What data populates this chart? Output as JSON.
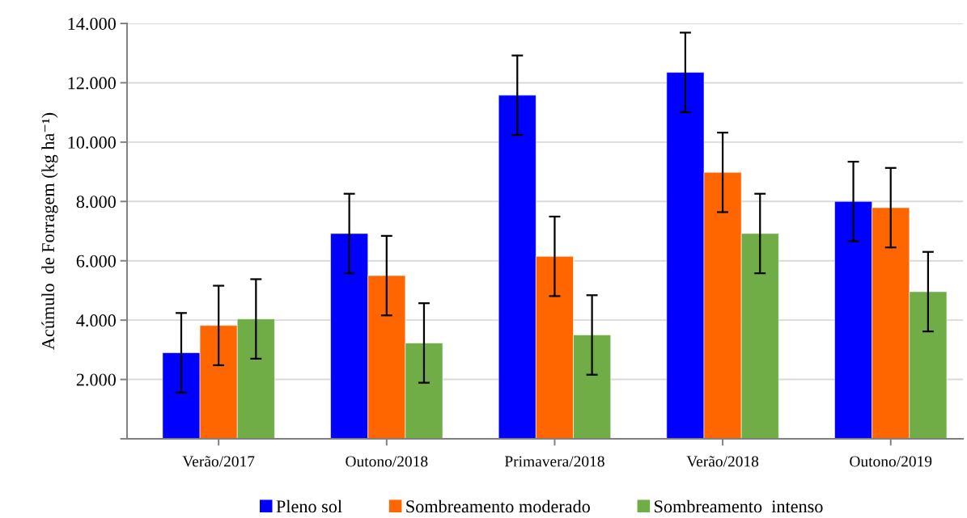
{
  "chart_data": {
    "type": "bar",
    "ylabel": "Acúmulo  de Forragem (kg ha⁻¹)",
    "categories": [
      "Verão/2017",
      "Outono/2018",
      "Primavera/2018",
      "Verão/2018",
      "Outono/2019"
    ],
    "series": [
      {
        "name": "Pleno sol",
        "color": "#0000ff",
        "values": [
          2900,
          6920,
          11580,
          12350,
          8000
        ],
        "errors": [
          1340,
          1340,
          1340,
          1340,
          1340
        ]
      },
      {
        "name": "Sombreamento moderado",
        "color": "#ff6600",
        "values": [
          3820,
          5500,
          6150,
          8980,
          7790
        ],
        "errors": [
          1340,
          1340,
          1340,
          1340,
          1340
        ]
      },
      {
        "name": "Sombreamento  intenso",
        "color": "#70ad47",
        "values": [
          4040,
          3230,
          3500,
          6920,
          4960
        ],
        "errors": [
          1340,
          1340,
          1340,
          1340,
          1340
        ]
      }
    ],
    "ylim": [
      0,
      14000
    ],
    "yticks": [
      {
        "value": 0,
        "label": null
      },
      {
        "value": 2000,
        "label": "2.000"
      },
      {
        "value": 4000,
        "label": "4.000"
      },
      {
        "value": 6000,
        "label": "6.000"
      },
      {
        "value": 8000,
        "label": "8.000"
      },
      {
        "value": 10000,
        "label": "10.000"
      },
      {
        "value": 12000,
        "label": "12.000"
      },
      {
        "value": 14000,
        "label": "14.000"
      }
    ],
    "grid": "y",
    "legend": "bottom"
  }
}
